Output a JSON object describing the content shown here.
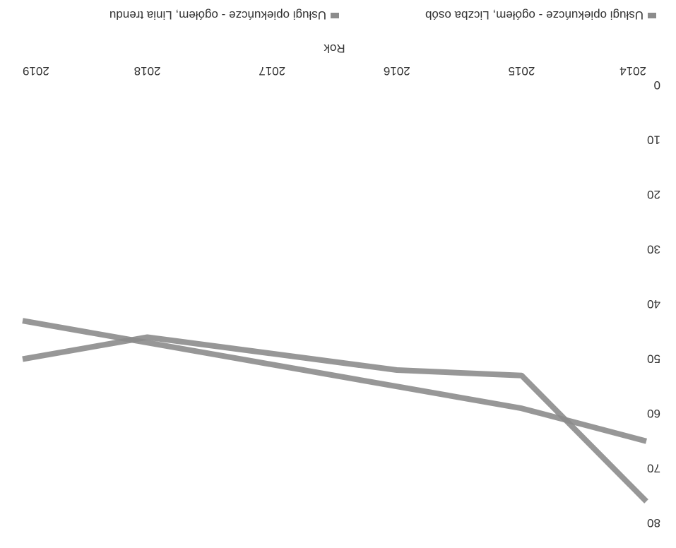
{
  "chart_data": {
    "type": "line",
    "categories": [
      "2014",
      "2015",
      "2016",
      "2017",
      "2018",
      "2019"
    ],
    "series": [
      {
        "name": "Usługi opiekuńcze - ogółem, Liczba osób",
        "values": [
          76,
          53,
          52,
          49,
          46,
          50
        ],
        "color": "#8c8c8c"
      },
      {
        "name": "Usługi opiekuńcze - ogółem, Linia trendu",
        "values": [
          65,
          59,
          55,
          51,
          47,
          43
        ],
        "color": "#8c8c8c"
      }
    ],
    "title": "",
    "xlabel": "Rok",
    "ylabel": "",
    "ylim": [
      0,
      80
    ],
    "yticks": [
      "0",
      "10",
      "20",
      "30",
      "40",
      "50",
      "60",
      "70",
      "80"
    ],
    "grid": false,
    "legend_position": "bottom",
    "orientation": "rotated 180°"
  }
}
